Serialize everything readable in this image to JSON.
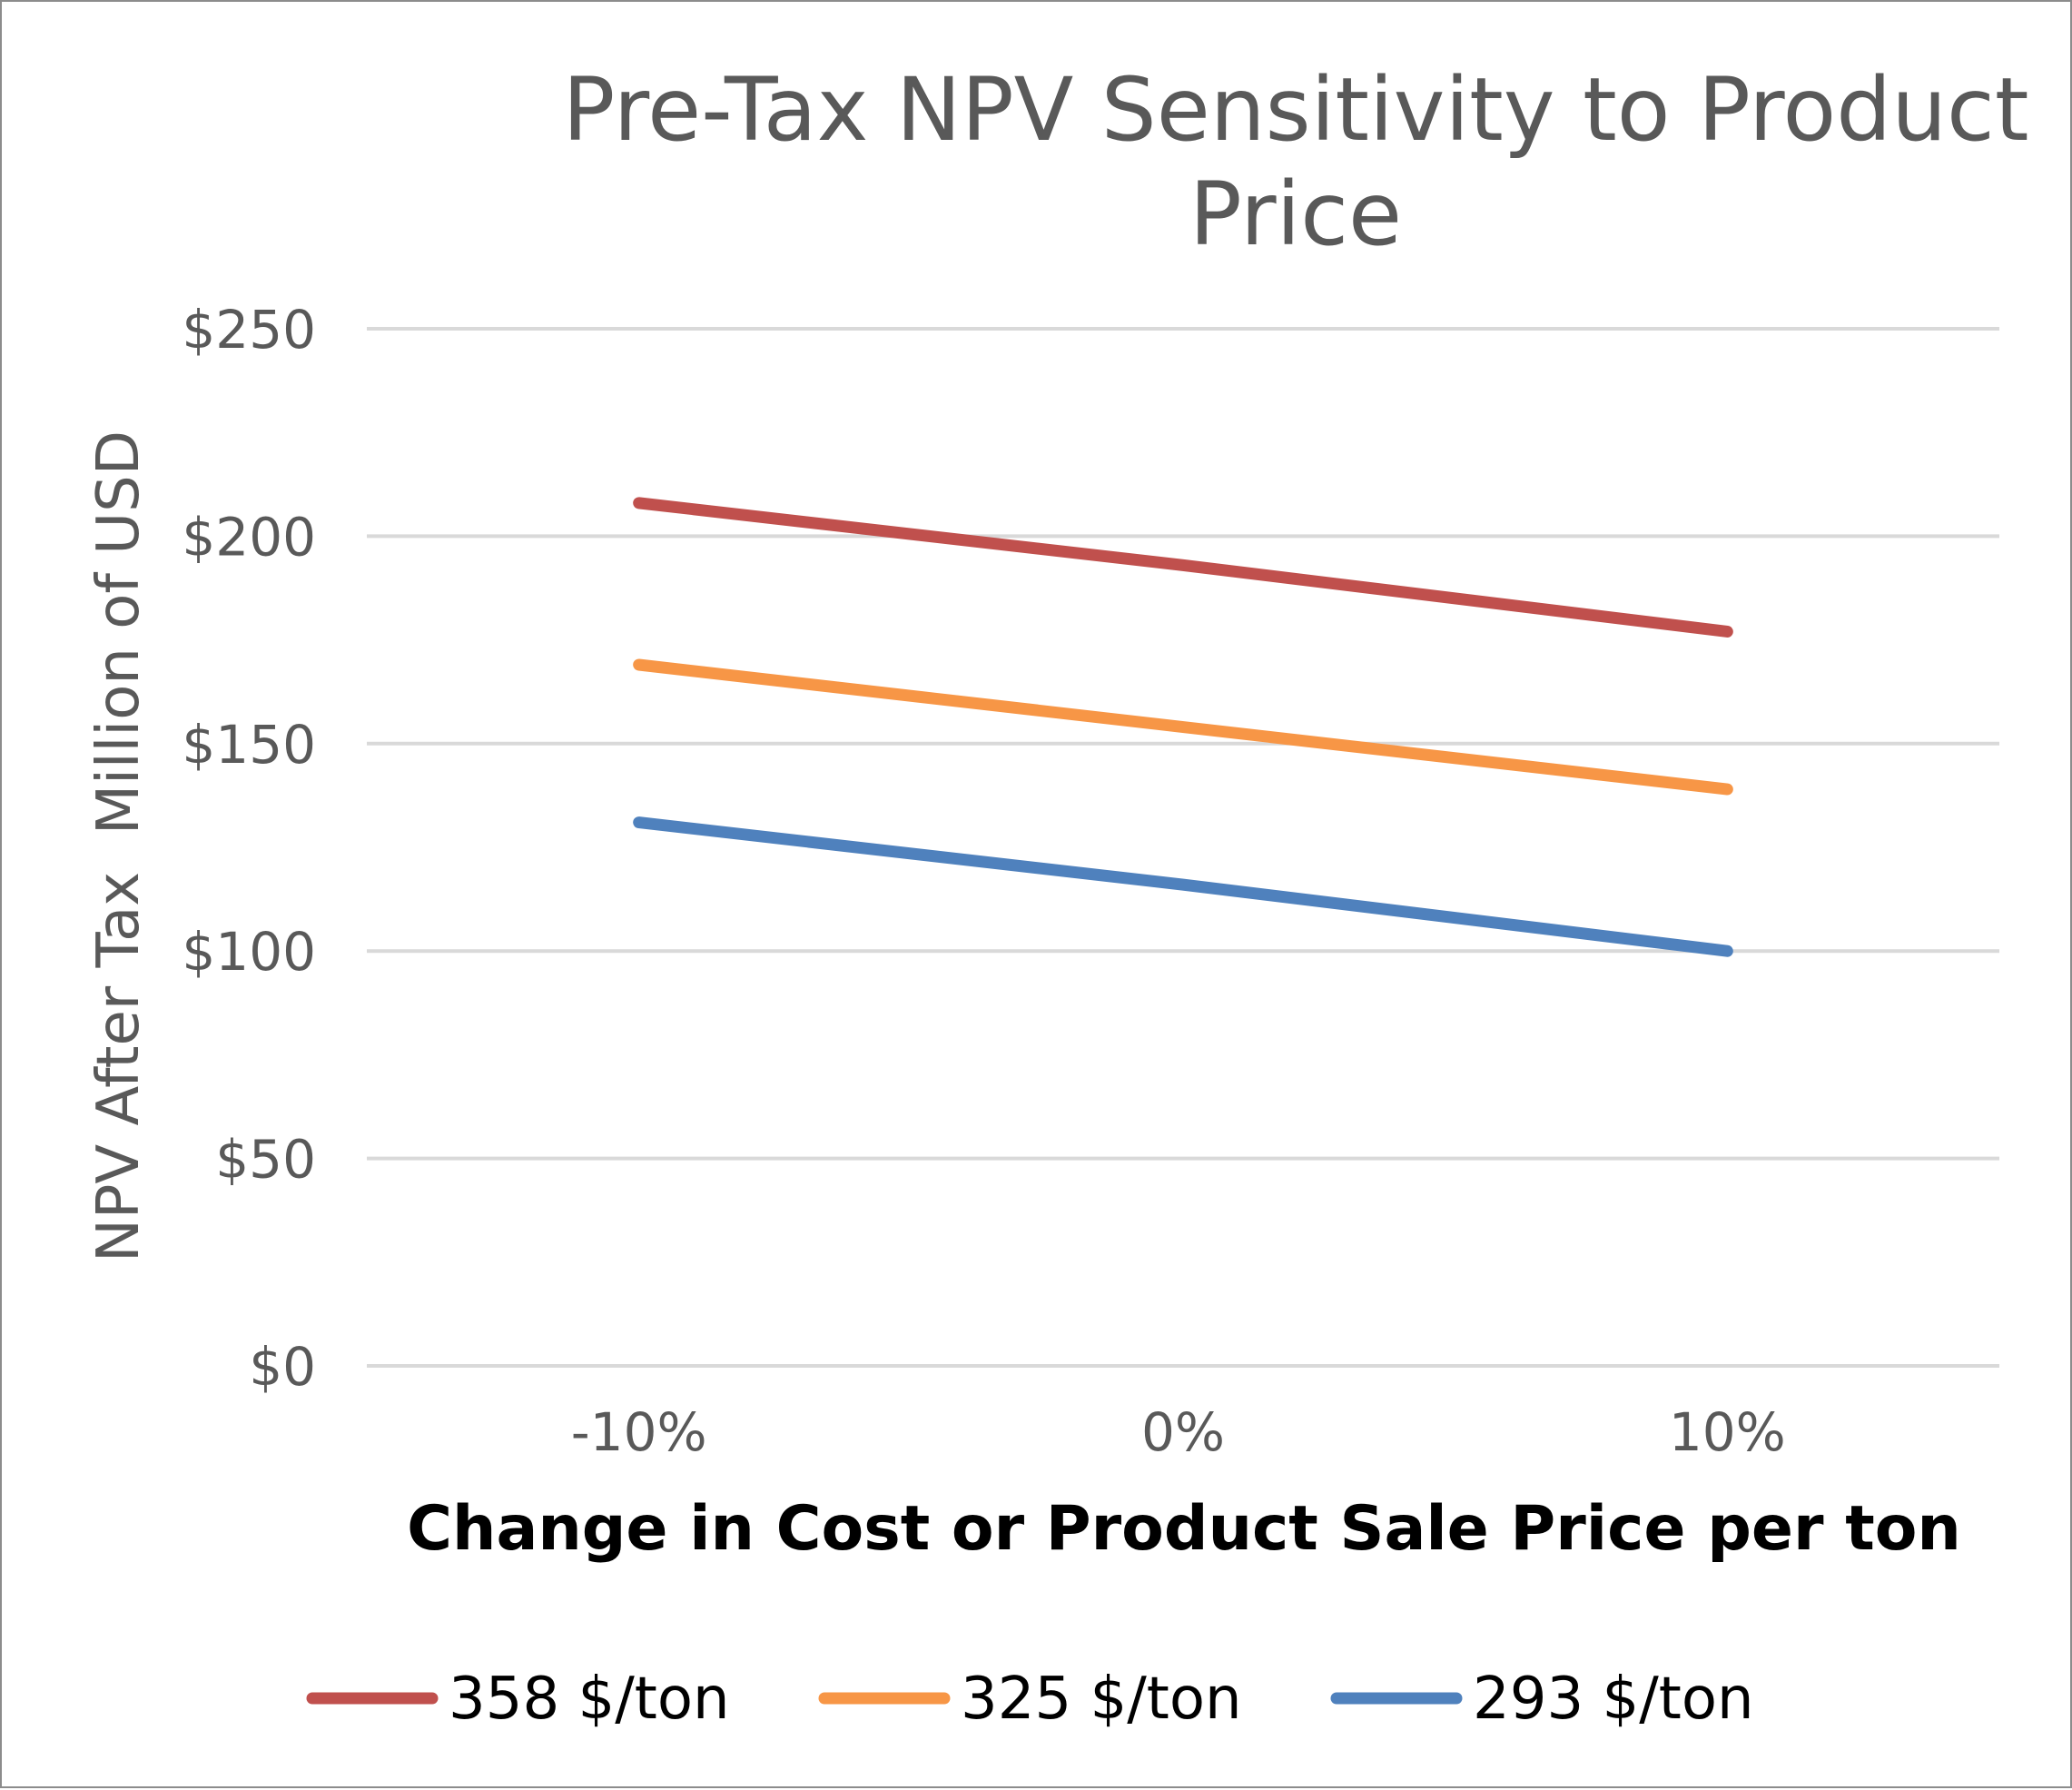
{
  "chart_data": {
    "type": "line",
    "title_lines": [
      "Pre-Tax NPV Sensitivity to Product",
      "Price"
    ],
    "xlabel": "Change in Cost or Product Sale Price per ton",
    "ylabel": "NPV After Tax  Million of USD",
    "categories": [
      "-10%",
      "0%",
      "10%"
    ],
    "ylim": [
      0,
      250
    ],
    "yticks": [
      0,
      50,
      100,
      150,
      200,
      250
    ],
    "ytick_labels": [
      "$0",
      "$50",
      "$100",
      "$150",
      "$200",
      "$250"
    ],
    "grid": true,
    "legend_position": "bottom",
    "series": [
      {
        "name": "358 $/ton",
        "color": "#c0504d",
        "values": [
          208,
          193,
          177
        ]
      },
      {
        "name": "325 $/ton",
        "color": "#f79646",
        "values": [
          169,
          154,
          139
        ]
      },
      {
        "name": "293 $/ton",
        "color": "#4f81bd",
        "values": [
          131,
          116,
          100
        ]
      }
    ]
  }
}
